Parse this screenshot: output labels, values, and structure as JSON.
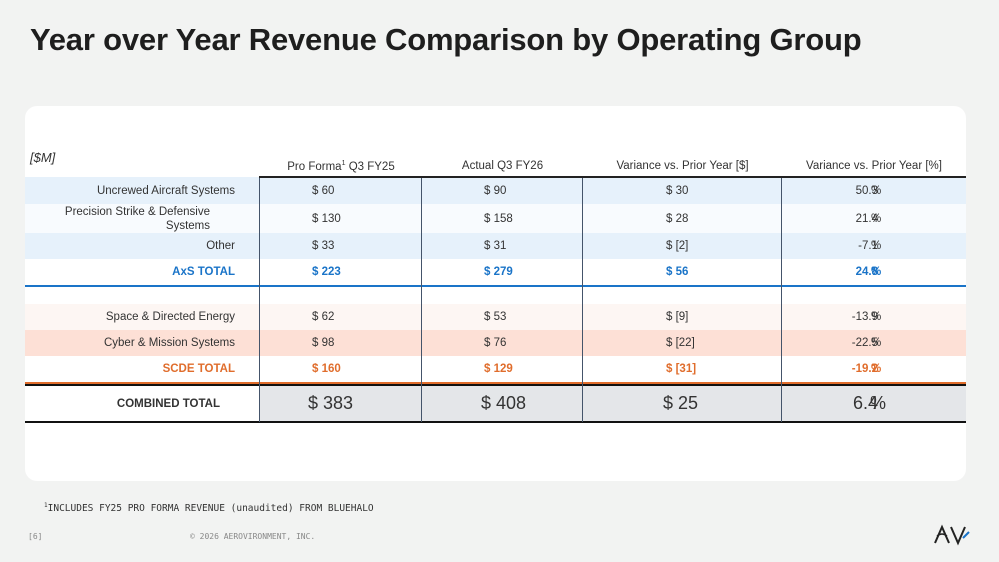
{
  "title": "Year over Year Revenue Comparison by Operating Group",
  "unit_label": "[$M]",
  "headers": {
    "col1": "Pro Forma",
    "col1_sup": "1",
    "col1_suffix": " Q3 FY25",
    "col2": "Actual Q3 FY26",
    "col3": "Variance vs. Prior Year [$]",
    "col4": "Variance vs. Prior Year [%]"
  },
  "rows": [
    {
      "label": "Uncrewed Aircraft Systems",
      "v1": "$ 60",
      "v2": "$ 90",
      "v3": "$ 30",
      "v4": "50.3",
      "pct": "%"
    },
    {
      "label": "Precision Strike & Defensive Systems",
      "v1": "$ 130",
      "v2": "$ 158",
      "v3": "$ 28",
      "v4": "21.4",
      "pct": "%"
    },
    {
      "label": "Other",
      "v1": "$ 33",
      "v2": "$ 31",
      "v3": "$ [2]",
      "v4": "-7.1",
      "pct": "%"
    },
    {
      "label": "AxS TOTAL",
      "v1": "$ 223",
      "v2": "$ 279",
      "v3": "$ 56",
      "v4": "24.8",
      "pct": "%"
    },
    {
      "label": "Space & Directed Energy",
      "v1": "$ 62",
      "v2": "$ 53",
      "v3": "$ [9]",
      "v4": "-13.9",
      "pct": "%"
    },
    {
      "label": "Cyber & Mission Systems",
      "v1": "$ 98",
      "v2": "$ 76",
      "v3": "$ [22]",
      "v4": "-22.5",
      "pct": "%"
    },
    {
      "label": "SCDE TOTAL",
      "v1": "$ 160",
      "v2": "$ 129",
      "v3": "$ [31]",
      "v4": "-19.2",
      "pct": "%"
    },
    {
      "label": "COMBINED TOTAL",
      "v1": "$ 383",
      "v2": "$ 408",
      "v3": "$ 25",
      "v4": "6.4",
      "pct": "%"
    }
  ],
  "footnote_sup": "1",
  "footnote": "INCLUDES FY25 PRO FORMA REVENUE (unaudited) FROM BLUEHALO",
  "page_number": "[6]",
  "copyright": "© 2026 AEROVIRONMENT, INC.",
  "logo_text": "AV",
  "colors": {
    "axs_blue": "#1a74c8",
    "scde_orange": "#e06d2c",
    "row_blue": "#e6f1fb",
    "row_orange": "#fde0d6",
    "row_orange_light": "#fdf6f3",
    "total_grey": "#e4e6e9"
  }
}
